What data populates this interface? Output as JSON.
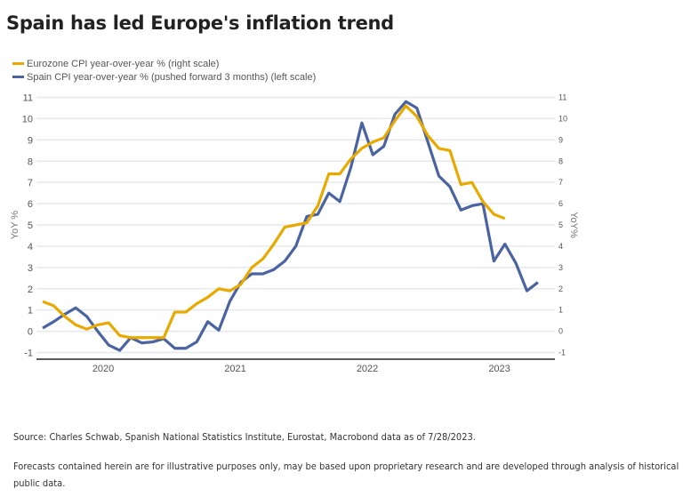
{
  "title": "Spain has led Europe's inflation trend",
  "legend": [
    {
      "label": "Eurozone CPI year-over-year % (right scale)",
      "color": "#E8A900"
    },
    {
      "label": "Spain CPI year-over-year % (pushed forward 3 months) (left scale)",
      "color": "#4A63A1"
    }
  ],
  "footnotes": {
    "source": "Source: Charles Schwab, Spanish National Statistics Institute, Eurostat, Macrobond data as of 7/28/2023.",
    "disclaimer": "Forecasts contained herein are for illustrative purposes only, may be based upon proprietary research and are developed through analysis of historical public data."
  },
  "chart_data": {
    "type": "line",
    "title": "Spain has led Europe's inflation trend",
    "xlabel": "",
    "ylabel": "YoY %",
    "ylabel_right": "YoY%",
    "ylim": [
      -1,
      11
    ],
    "ylim_right": [
      -1,
      11
    ],
    "yticks": [
      -1,
      0,
      1,
      2,
      3,
      4,
      5,
      6,
      7,
      8,
      9,
      10,
      11
    ],
    "yticks_right": [
      -1,
      0,
      1,
      2,
      3,
      4,
      5,
      6,
      7,
      8,
      9,
      10,
      11
    ],
    "x_start": "2020-01",
    "x_frequency": "monthly",
    "xticks": [
      "2020",
      "2021",
      "2022",
      "2023"
    ],
    "grid": true,
    "legend_position": "top-left",
    "series": [
      {
        "name": "Eurozone CPI year-over-year % (right scale)",
        "axis": "right",
        "color": "#E8A900",
        "start": "2020-01",
        "values": [
          1.4,
          1.2,
          0.7,
          0.3,
          0.1,
          0.3,
          0.4,
          -0.2,
          -0.3,
          -0.3,
          -0.3,
          -0.3,
          0.9,
          0.9,
          1.3,
          1.6,
          2.0,
          1.9,
          2.2,
          3.0,
          3.4,
          4.1,
          4.9,
          5.0,
          5.1,
          5.9,
          7.4,
          7.4,
          8.1,
          8.6,
          8.9,
          9.1,
          9.9,
          10.6,
          10.1,
          9.2,
          8.6,
          8.5,
          6.9,
          7.0,
          6.1,
          5.5,
          5.3
        ]
      },
      {
        "name": "Spain CPI year-over-year % (pushed forward 3 months) (left scale)",
        "axis": "left",
        "color": "#4A63A1",
        "start": "2020-01",
        "values": [
          0.15,
          0.45,
          0.8,
          1.1,
          0.7,
          0.0,
          -0.65,
          -0.9,
          -0.3,
          -0.55,
          -0.5,
          -0.35,
          -0.8,
          -0.8,
          -0.5,
          0.45,
          0.05,
          1.4,
          2.3,
          2.7,
          2.7,
          2.9,
          3.3,
          4.0,
          5.4,
          5.5,
          6.5,
          6.1,
          7.7,
          9.8,
          8.3,
          8.7,
          10.2,
          10.8,
          10.5,
          8.9,
          7.3,
          6.8,
          5.7,
          5.9,
          6.0,
          3.3,
          4.1,
          3.2,
          1.9,
          2.3
        ]
      }
    ]
  }
}
